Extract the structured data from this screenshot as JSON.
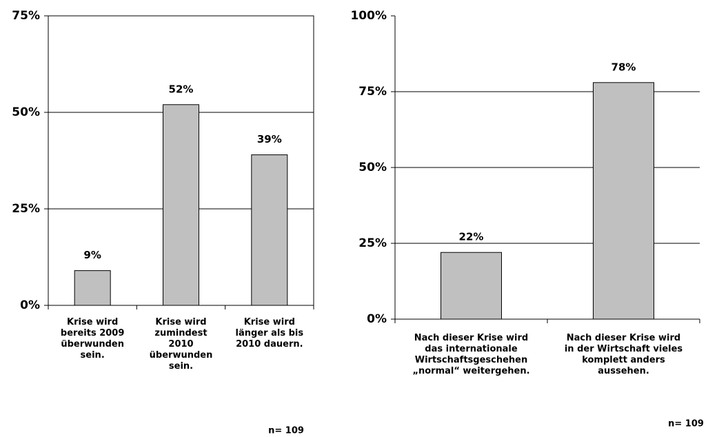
{
  "chart_data": [
    {
      "type": "bar",
      "categories": [
        "Krise wird\nbereits 2009\nüberwunden\nsein.",
        "Krise wird\nzumindest\n2010\nüberwunden\nsein.",
        "Krise wird\nlänger als bis\n2010 dauern."
      ],
      "values": [
        9,
        52,
        39
      ],
      "value_labels": [
        "9%",
        "52%",
        "39%"
      ],
      "color": "#c0c0c0",
      "ylim": [
        0,
        75
      ],
      "yticks": [
        {
          "value": 0,
          "label": "0%"
        },
        {
          "value": 25,
          "label": "25%"
        },
        {
          "value": 50,
          "label": "50%"
        },
        {
          "value": 75,
          "label": "75%"
        }
      ],
      "grid": true,
      "note": "n= 109"
    },
    {
      "type": "bar",
      "categories": [
        "Nach dieser Krise wird\ndas internationale\nWirtschaftsgeschehen\n„normal“ weitergehen.",
        "Nach dieser Krise wird\nin der Wirtschaft vieles\nkomplett anders\naussehen."
      ],
      "values": [
        22,
        78
      ],
      "value_labels": [
        "22%",
        "78%"
      ],
      "color": "#c0c0c0",
      "ylim": [
        0,
        100
      ],
      "yticks": [
        {
          "value": 0,
          "label": "0%"
        },
        {
          "value": 25,
          "label": "25%"
        },
        {
          "value": 50,
          "label": "50%"
        },
        {
          "value": 75,
          "label": "75%"
        },
        {
          "value": 100,
          "label": "100%"
        }
      ],
      "grid": true,
      "note": "n= 109"
    }
  ]
}
